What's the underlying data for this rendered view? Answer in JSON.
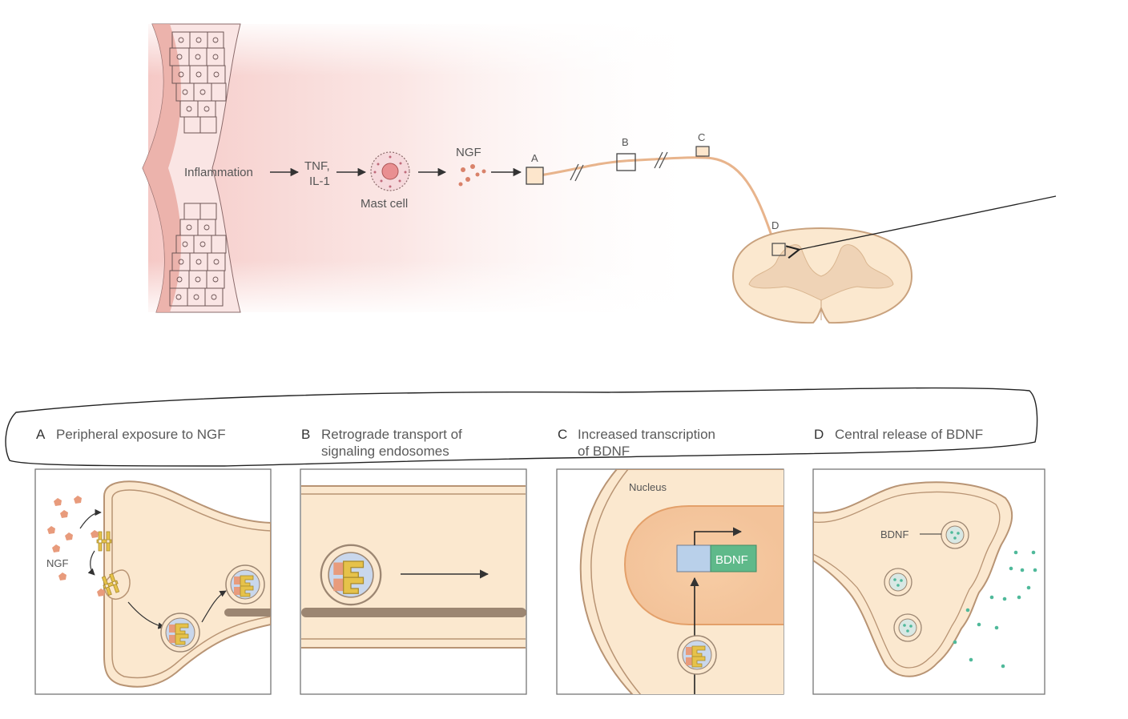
{
  "top": {
    "flow": {
      "inflammation": "Inflammation",
      "tnf_line1": "TNF,",
      "tnf_line2": "IL-1",
      "mast_cell": "Mast cell",
      "ngf": "NGF"
    },
    "site_labels": {
      "a": "A",
      "b": "B",
      "c": "C",
      "d": "D"
    }
  },
  "panels": [
    {
      "letter": "A",
      "title_line1": "Peripheral exposure to NGF",
      "title_line2": ""
    },
    {
      "letter": "B",
      "title_line1": "Retrograde transport of",
      "title_line2": "signaling endosomes"
    },
    {
      "letter": "C",
      "title_line1": "Increased transcription",
      "title_line2": "of BDNF"
    },
    {
      "letter": "D",
      "title_line1": "Central release of BDNF",
      "title_line2": ""
    }
  ],
  "panel_a": {
    "ngf": "NGF"
  },
  "panel_c": {
    "nucleus": "Nucleus",
    "gene": "BDNF"
  },
  "panel_d": {
    "bdnf": "BDNF"
  },
  "colors": {
    "axon": "#e8b48c",
    "cytoplasm": "#fbe8cf",
    "membrane": "#c9a27e",
    "receptor": "#e6c24a",
    "ngf": "#e89b7c",
    "bdnf_dots": "#4fb99a",
    "gene_promoter": "#b9d0ea",
    "gene_bdnf": "#5fb98a"
  }
}
